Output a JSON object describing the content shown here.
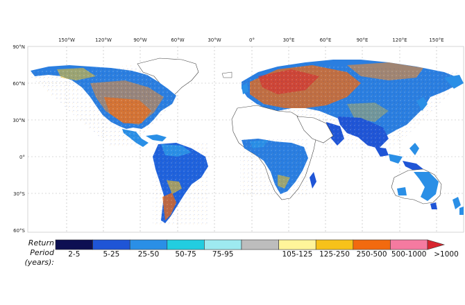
{
  "map": {
    "longitude_labels": [
      "150°W",
      "120°W",
      "90°W",
      "60°W",
      "30°W",
      "0°",
      "30°E",
      "60°E",
      "90°E",
      "120°E",
      "150°E"
    ],
    "latitude_labels": [
      "90°N",
      "60°N",
      "30°N",
      "0°",
      "30°S",
      "60°S"
    ]
  },
  "legend": {
    "title_line1": "Return",
    "title_line2": "Period (years):",
    "bins": [
      {
        "label": "2-5",
        "color": "#0d0f52"
      },
      {
        "label": "5-25",
        "color": "#1f55d6"
      },
      {
        "label": "25-50",
        "color": "#2a8fe6"
      },
      {
        "label": "50-75",
        "color": "#22cde0"
      },
      {
        "label": "75-95",
        "color": "#9eeaf0"
      },
      {
        "label": "",
        "color": "#bdbdbd"
      },
      {
        "label": "105-125",
        "color": "#fff59a"
      },
      {
        "label": "125-250",
        "color": "#f7c21a"
      },
      {
        "label": "250-500",
        "color": "#f26a0f"
      },
      {
        "label": "500-1000",
        "color": "#f57aa0"
      }
    ],
    "overflow_label": ">1000",
    "overflow_color": "#d8252e"
  }
}
